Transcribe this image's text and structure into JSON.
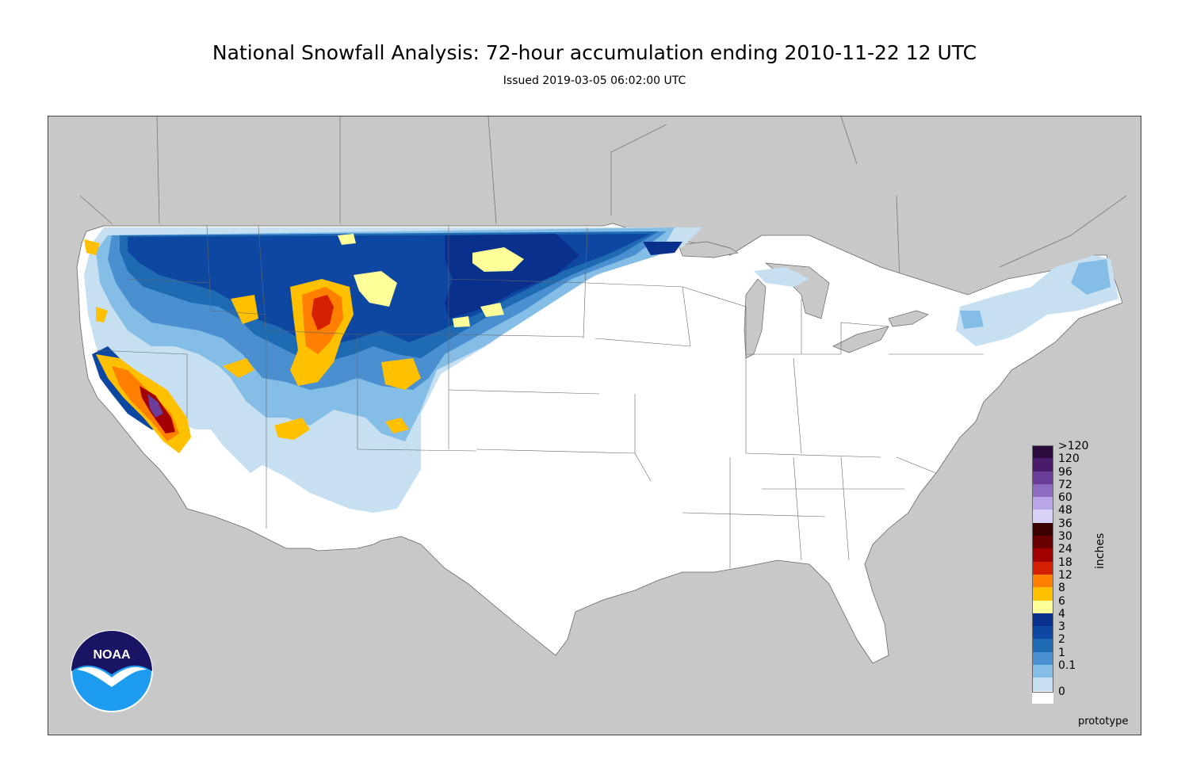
{
  "header": {
    "title": "National Snowfall Analysis: 72-hour accumulation ending 2010-11-22 12 UTC",
    "subtitle": "Issued 2019-03-05 06:02:00 UTC"
  },
  "map": {
    "background_color": "#c8c8c8",
    "land_color": "#ffffff",
    "water_color": "#c8c8c8"
  },
  "legend": {
    "units": "inches",
    "items": [
      {
        "label": ">120",
        "color": "#2b0a3d"
      },
      {
        "label": "120",
        "color": "#4a1a6b"
      },
      {
        "label": "96",
        "color": "#6b3d9a"
      },
      {
        "label": "72",
        "color": "#8e6bc2"
      },
      {
        "label": "60",
        "color": "#b8a6e6"
      },
      {
        "label": "48",
        "color": "#d8d2f7"
      },
      {
        "label": "36",
        "color": "#3d0000"
      },
      {
        "label": "30",
        "color": "#6b0000"
      },
      {
        "label": "24",
        "color": "#a30000"
      },
      {
        "label": "18",
        "color": "#d42000"
      },
      {
        "label": "12",
        "color": "#ff7f00"
      },
      {
        "label": "8",
        "color": "#ffc000"
      },
      {
        "label": "6",
        "color": "#ffff99"
      },
      {
        "label": "4",
        "color": "#08308c"
      },
      {
        "label": "3",
        "color": "#0d47a1"
      },
      {
        "label": "2",
        "color": "#1f6bb3"
      },
      {
        "label": "1",
        "color": "#4a8fd0"
      },
      {
        "label": "0.1",
        "color": "#84bde6"
      },
      {
        "label": "",
        "color": "#c6dff1"
      },
      {
        "label": "0",
        "color": "#ffffff"
      }
    ]
  },
  "footer": {
    "note": "prototype"
  },
  "logo": {
    "text": "NOAA"
  }
}
